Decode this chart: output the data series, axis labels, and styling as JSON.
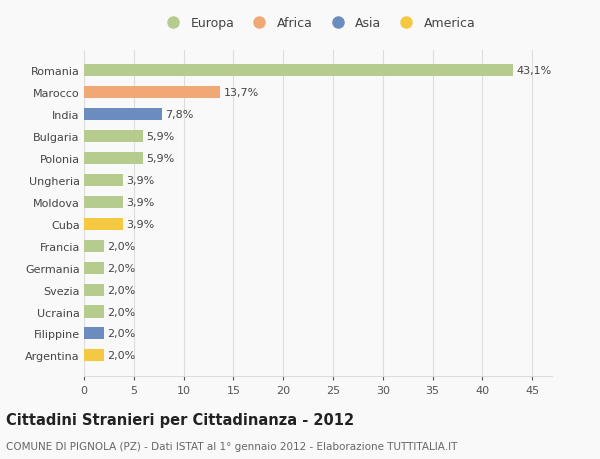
{
  "countries": [
    "Romania",
    "Marocco",
    "India",
    "Bulgaria",
    "Polonia",
    "Ungheria",
    "Moldova",
    "Cuba",
    "Francia",
    "Germania",
    "Svezia",
    "Ucraina",
    "Filippine",
    "Argentina"
  ],
  "values": [
    43.1,
    13.7,
    7.8,
    5.9,
    5.9,
    3.9,
    3.9,
    3.9,
    2.0,
    2.0,
    2.0,
    2.0,
    2.0,
    2.0
  ],
  "labels": [
    "43,1%",
    "13,7%",
    "7,8%",
    "5,9%",
    "5,9%",
    "3,9%",
    "3,9%",
    "3,9%",
    "2,0%",
    "2,0%",
    "2,0%",
    "2,0%",
    "2,0%",
    "2,0%"
  ],
  "continents": [
    "Europa",
    "Africa",
    "Asia",
    "Europa",
    "Europa",
    "Europa",
    "Europa",
    "America",
    "Europa",
    "Europa",
    "Europa",
    "Europa",
    "Asia",
    "America"
  ],
  "continent_colors": {
    "Europa": "#b5cc8e",
    "Africa": "#f0a875",
    "Asia": "#6b8cbf",
    "America": "#f5c842"
  },
  "xlim": [
    0,
    47
  ],
  "xticks": [
    0,
    5,
    10,
    15,
    20,
    25,
    30,
    35,
    40,
    45
  ],
  "title": "Cittadini Stranieri per Cittadinanza - 2012",
  "subtitle": "COMUNE DI PIGNOLA (PZ) - Dati ISTAT al 1° gennaio 2012 - Elaborazione TUTTITALIA.IT",
  "background_color": "#f9f9f9",
  "grid_color": "#dddddd",
  "bar_height": 0.55,
  "label_fontsize": 8,
  "tick_fontsize": 8,
  "title_fontsize": 10.5,
  "subtitle_fontsize": 7.5,
  "legend_order": [
    "Europa",
    "Africa",
    "Asia",
    "America"
  ]
}
